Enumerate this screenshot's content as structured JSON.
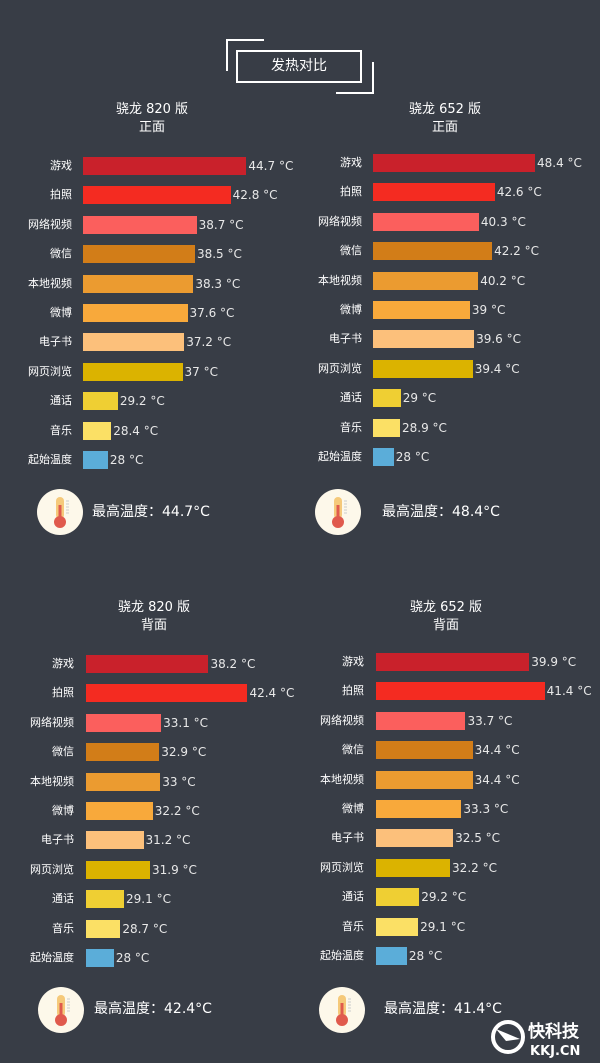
{
  "header": {
    "title": "发热对比"
  },
  "chart_data": [
    {
      "type": "bar",
      "orientation": "horizontal",
      "title": "骁龙 820 版",
      "subtitle": "正面",
      "unit": "°C",
      "xlim": [
        25,
        46.7
      ],
      "categories": [
        "游戏",
        "拍照",
        "网络视频",
        "微信",
        "本地视频",
        "微博",
        "电子书",
        "网页浏览",
        "通话",
        "音乐",
        "起始温度"
      ],
      "values": [
        44.7,
        42.8,
        38.7,
        38.5,
        38.3,
        37.6,
        37.2,
        37,
        29.2,
        28.4,
        28
      ],
      "value_labels": [
        "44.7 °C",
        "42.8 °C",
        "38.7 °C",
        "38.5 °C",
        "38.3 °C",
        "37.6 °C",
        "37.2 °C",
        "37 °C",
        "29.2 °C",
        "28.4 °C",
        "28 °C"
      ],
      "max_label": "最高温度：44.7°C"
    },
    {
      "type": "bar",
      "orientation": "horizontal",
      "title": "骁龙 652 版",
      "subtitle": "正面",
      "unit": "°C",
      "xlim": [
        25,
        51
      ],
      "categories": [
        "游戏",
        "拍照",
        "网络视频",
        "微信",
        "本地视频",
        "微博",
        "电子书",
        "网页浏览",
        "通话",
        "音乐",
        "起始温度"
      ],
      "values": [
        48.4,
        42.6,
        40.3,
        42.2,
        40.2,
        39,
        39.6,
        39.4,
        29,
        28.9,
        28
      ],
      "value_labels": [
        "48.4 °C",
        "42.6 °C",
        "40.3 °C",
        "42.2 °C",
        "40.2 °C",
        "39 °C",
        "39.6 °C",
        "39.4 °C",
        "29 °C",
        "28.9 °C",
        "28 °C"
      ],
      "max_label": "最高温度：48.4°C"
    },
    {
      "type": "bar",
      "orientation": "horizontal",
      "title": "骁龙 820 版",
      "subtitle": "背面",
      "unit": "°C",
      "xlim": [
        25,
        44.4
      ],
      "categories": [
        "游戏",
        "拍照",
        "网络视频",
        "微信",
        "本地视频",
        "微博",
        "电子书",
        "网页浏览",
        "通话",
        "音乐",
        "起始温度"
      ],
      "values": [
        38.2,
        42.4,
        33.1,
        32.9,
        33,
        32.2,
        31.2,
        31.9,
        29.1,
        28.7,
        28
      ],
      "value_labels": [
        "38.2 °C",
        "42.4 °C",
        "33.1 °C",
        "32.9 °C",
        "33 °C",
        "32.2 °C",
        "31.2 °C",
        "31.9 °C",
        "29.1 °C",
        "28.7 °C",
        "28 °C"
      ],
      "max_label": "最高温度：42.4°C"
    },
    {
      "type": "bar",
      "orientation": "horizontal",
      "title": "骁龙 652 版",
      "subtitle": "背面",
      "unit": "°C",
      "xlim": [
        25,
        42.5
      ],
      "categories": [
        "游戏",
        "拍照",
        "网络视频",
        "微信",
        "本地视频",
        "微博",
        "电子书",
        "网页浏览",
        "通话",
        "音乐",
        "起始温度"
      ],
      "values": [
        39.9,
        41.4,
        33.7,
        34.4,
        34.4,
        33.3,
        32.5,
        32.2,
        29.2,
        29.1,
        28
      ],
      "value_labels": [
        "39.9 °C",
        "41.4 °C",
        "33.7 °C",
        "34.4 °C",
        "34.4 °C",
        "33.3 °C",
        "32.5 °C",
        "32.2 °C",
        "29.2 °C",
        "29.1 °C",
        "28 °C"
      ],
      "max_label": "最高温度：41.4°C"
    }
  ],
  "colors": [
    "#c9212b",
    "#f42b21",
    "#fb5f5d",
    "#d27d18",
    "#eb9b30",
    "#f8a93b",
    "#fcc07b",
    "#dbb300",
    "#efcf33",
    "#fbe065",
    "#5badd9"
  ],
  "watermark": {
    "name": "快科技",
    "domain": "KKJ.CN"
  }
}
